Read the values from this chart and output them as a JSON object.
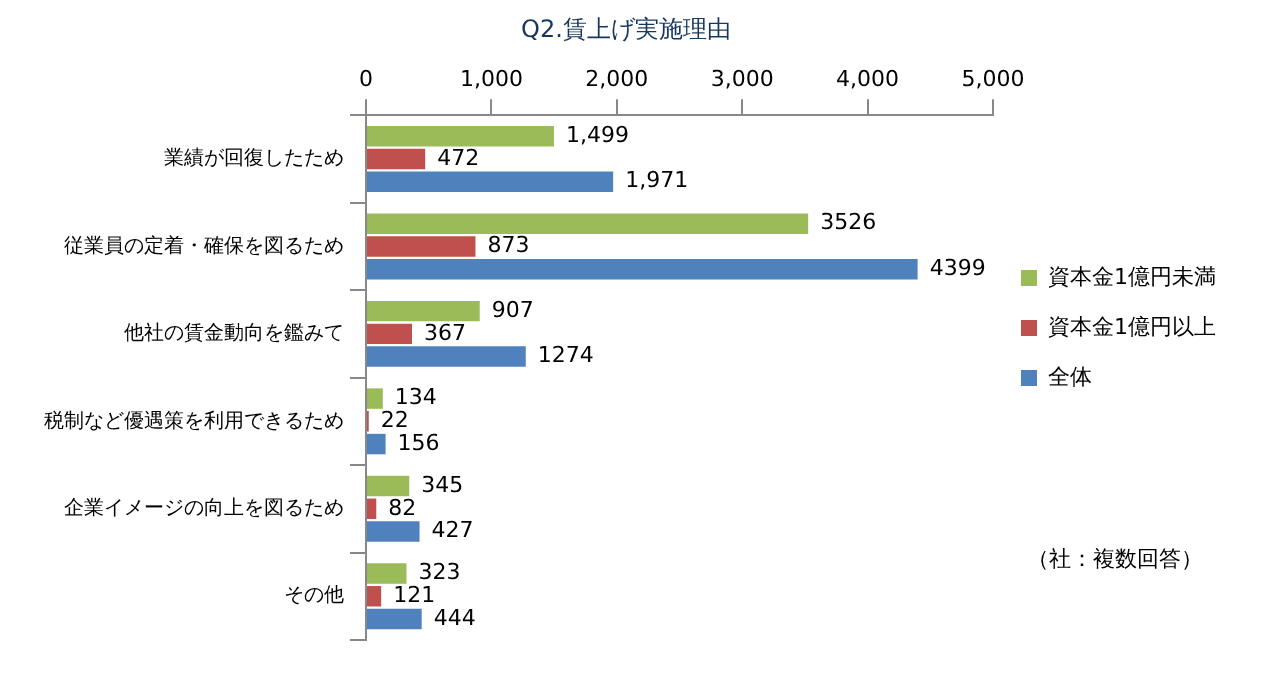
{
  "chart_data": {
    "type": "bar",
    "orientation": "horizontal",
    "title": "Q2.賃上げ実施理由",
    "categories": [
      "業績が回復したため",
      "従業員の定着・確保を図るため",
      "他社の賃金動向を鑑みて",
      "税制など優遇策を利用できるため",
      "企業イメージの向上を図るため",
      "その他"
    ],
    "series": [
      {
        "name": "資本金1億円未満",
        "color": "#9bbb59",
        "values": [
          1499,
          3526,
          907,
          134,
          345,
          323
        ],
        "value_labels": [
          "1,499",
          "3526",
          "907",
          "134",
          "345",
          "323"
        ]
      },
      {
        "name": "資本金1億円以上",
        "color": "#c0504d",
        "values": [
          472,
          873,
          367,
          22,
          82,
          121
        ],
        "value_labels": [
          "472",
          "873",
          "367",
          "22",
          "82",
          "121"
        ]
      },
      {
        "name": "全体",
        "color": "#4f81bd",
        "values": [
          1971,
          4399,
          1274,
          156,
          427,
          444
        ],
        "value_labels": [
          "1,971",
          "4399",
          "1274",
          "156",
          "427",
          "444"
        ]
      }
    ],
    "xlim": [
      0,
      5000
    ],
    "xticks": [
      0,
      {
        "value": 1000,
        "label": "1,000"
      },
      {
        "value": 2000,
        "label": "2,000"
      },
      {
        "value": 3000,
        "label": "3,000"
      },
      {
        "value": 4000,
        "label": "4,000"
      },
      {
        "value": 5000,
        "label": "5,000"
      }
    ],
    "grid": false,
    "legend": "right",
    "annotations": [
      "（社：複数回答）"
    ]
  }
}
